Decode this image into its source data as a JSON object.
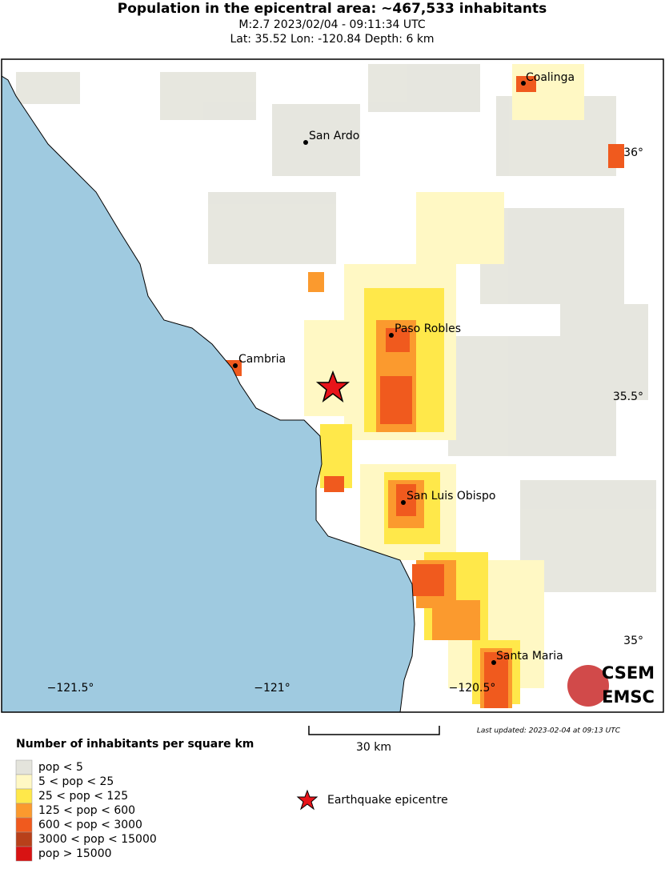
{
  "header": {
    "title": "Population in the epicentral area: ~467,533 inhabitants",
    "subtitle_lines": [
      "M:2.7 2023/02/04 - 09:11:34 UTC",
      "Lat: 35.52 Lon: -120.84 Depth: 6 km"
    ]
  },
  "map": {
    "cities": [
      "Coalinga",
      "San Ardo",
      "Paso Robles",
      "Cambria",
      "San Luis Obispo",
      "Santa Maria"
    ],
    "lat_labels": [
      "36°",
      "35.5°",
      "35°"
    ],
    "lon_labels": [
      "−121.5°",
      "−121°",
      "−120.5°"
    ],
    "scale_label": "30 km",
    "last_updated": "Last updated: 2023-02-04 at 09:13 UTC",
    "logo": [
      "CSEM",
      "EMSC"
    ]
  },
  "legend": {
    "title": "Number of inhabitants per square km",
    "items": [
      {
        "label": "pop < 5",
        "color": "#e4e4dc"
      },
      {
        "label": "5 < pop < 25",
        "color": "#fff8c4"
      },
      {
        "label": "25 < pop < 125",
        "color": "#ffe84a"
      },
      {
        "label": "125 < pop < 600",
        "color": "#fb9a2e"
      },
      {
        "label": "600 < pop < 3000",
        "color": "#f05a1e"
      },
      {
        "label": "3000 < pop < 15000",
        "color": "#b8401a"
      },
      {
        "label": "pop > 15000",
        "color": "#d81313"
      }
    ],
    "epicentre_label": "Earthquake epicentre"
  }
}
